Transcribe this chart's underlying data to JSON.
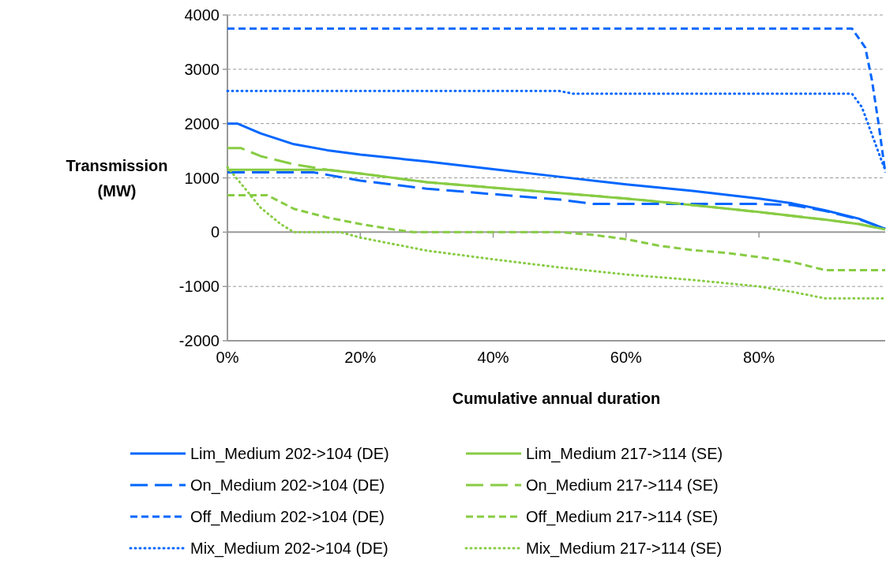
{
  "chart_data": {
    "type": "line",
    "xlabel": "Cumulative annual duration",
    "ylabel": "Transmission\n(MW)",
    "xlim": [
      0,
      99
    ],
    "xticks": [
      {
        "value": 0,
        "label": "0%"
      },
      {
        "value": 20,
        "label": "20%"
      },
      {
        "value": 40,
        "label": "40%"
      },
      {
        "value": 60,
        "label": "60%"
      },
      {
        "value": 80,
        "label": "80%"
      }
    ],
    "ylim": [
      -2000,
      4000
    ],
    "yticks": [
      -2000,
      -1000,
      0,
      1000,
      2000,
      3000,
      4000
    ],
    "grid": "y",
    "legend": "bottom",
    "series": [
      {
        "name": "Lim_Medium 202->104 (DE)",
        "color": "#0066ff",
        "line_style": "solid",
        "x": [
          0,
          1.5,
          5,
          10,
          15,
          20,
          30,
          40,
          50,
          60,
          70,
          80,
          85,
          90,
          95,
          99
        ],
        "values": [
          2000,
          2000,
          1820,
          1620,
          1510,
          1430,
          1300,
          1160,
          1020,
          880,
          760,
          620,
          530,
          400,
          250,
          60
        ]
      },
      {
        "name": "Lim_Medium 217->114 (SE)",
        "color": "#88cc44",
        "line_style": "solid",
        "x": [
          0,
          15,
          20,
          30,
          40,
          50,
          60,
          70,
          80,
          90,
          95,
          99
        ],
        "values": [
          1150,
          1150,
          1080,
          920,
          820,
          720,
          620,
          500,
          370,
          230,
          150,
          50
        ]
      },
      {
        "name": "On_Medium 202->104 (DE)",
        "color": "#0066ff",
        "line_style": "longdash",
        "x": [
          0,
          13,
          20,
          30,
          40,
          50,
          55,
          80,
          85,
          90,
          95,
          99
        ],
        "values": [
          1100,
          1100,
          950,
          800,
          700,
          600,
          520,
          520,
          500,
          390,
          240,
          60
        ]
      },
      {
        "name": "On_Medium 217->114 (SE)",
        "color": "#88cc44",
        "line_style": "longdash",
        "x": [
          0,
          2,
          5,
          10,
          15,
          20,
          30,
          40,
          50,
          60,
          70,
          80,
          90,
          95,
          99
        ],
        "values": [
          1550,
          1550,
          1400,
          1250,
          1150,
          1080,
          920,
          820,
          720,
          620,
          500,
          370,
          230,
          150,
          50
        ]
      },
      {
        "name": "Off_Medium 202->104 (DE)",
        "color": "#0066ff",
        "line_style": "dashed",
        "x": [
          0,
          94,
          96,
          97,
          98,
          99
        ],
        "values": [
          3750,
          3750,
          3400,
          2800,
          2000,
          1100
        ]
      },
      {
        "name": "Off_Medium 217->114 (SE)",
        "color": "#88cc44",
        "line_style": "dashed",
        "x": [
          0,
          6,
          10,
          15,
          20,
          25,
          28,
          50,
          55,
          60,
          65,
          70,
          75,
          80,
          85,
          90,
          99
        ],
        "values": [
          680,
          680,
          430,
          270,
          150,
          50,
          0,
          0,
          -50,
          -130,
          -250,
          -330,
          -380,
          -460,
          -550,
          -700,
          -700
        ]
      },
      {
        "name": "Mix_Medium 202->104 (DE)",
        "color": "#0066ff",
        "line_style": "dotted",
        "x": [
          0,
          50,
          52,
          94,
          95.5,
          97,
          98.5,
          99
        ],
        "values": [
          2600,
          2600,
          2550,
          2550,
          2300,
          1800,
          1300,
          1150
        ]
      },
      {
        "name": "Mix_Medium 217->114 (SE)",
        "color": "#88cc44",
        "line_style": "dotted",
        "x": [
          0,
          2,
          5,
          8,
          10,
          17,
          20,
          30,
          40,
          50,
          60,
          70,
          80,
          85,
          90,
          99
        ],
        "values": [
          1200,
          900,
          450,
          150,
          0,
          0,
          -100,
          -340,
          -500,
          -650,
          -780,
          -880,
          -1000,
          -1100,
          -1220,
          -1220
        ]
      }
    ]
  }
}
